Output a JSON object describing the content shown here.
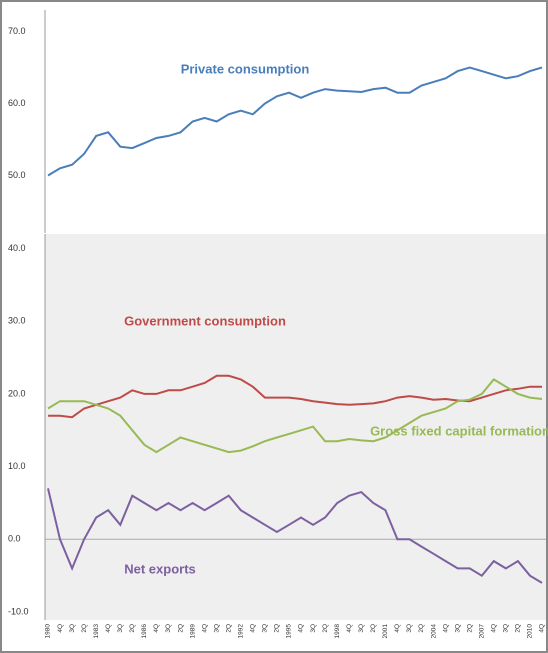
{
  "chart_data": [
    {
      "type": "line",
      "ylim": [
        42,
        73
      ],
      "yticks": [
        {
          "value": 50,
          "label": "50.0"
        },
        {
          "value": 60,
          "label": "60.0"
        },
        {
          "value": 70,
          "label": "70.0"
        }
      ],
      "series": [
        {
          "name": "Private consumption",
          "color": "#4a7ebb",
          "values": [
            50,
            51,
            51.5,
            53,
            55.5,
            56,
            54,
            53.8,
            54.5,
            55.2,
            55.5,
            56,
            57.5,
            58,
            57.5,
            58.5,
            59,
            58.5,
            60,
            61,
            61.5,
            60.8,
            61.5,
            62,
            61.8,
            61.7,
            61.6,
            62,
            62.2,
            61.5,
            61.5,
            62.5,
            63,
            63.5,
            64.5,
            65,
            64.5,
            64,
            63.5,
            63.8,
            64.5,
            65
          ]
        }
      ]
    },
    {
      "type": "line",
      "ylim": [
        -10,
        42
      ],
      "yticks": [
        {
          "value": -10,
          "label": "-10.0"
        },
        {
          "value": 0,
          "label": "0.0"
        },
        {
          "value": 10,
          "label": "10.0"
        },
        {
          "value": 20,
          "label": "20.0"
        },
        {
          "value": 30,
          "label": "30.0"
        },
        {
          "value": 40,
          "label": "40.0"
        }
      ],
      "categories": [
        "1980",
        "4Q",
        "3Q",
        "2Q",
        "1983",
        "4Q",
        "3Q",
        "2Q",
        "1986",
        "4Q",
        "3Q",
        "2Q",
        "1989",
        "4Q",
        "3Q",
        "2Q",
        "1992",
        "4Q",
        "3Q",
        "2Q",
        "1995",
        "4Q",
        "3Q",
        "2Q",
        "1998",
        "4Q",
        "3Q",
        "2Q",
        "2001",
        "4Q",
        "3Q",
        "2Q",
        "2004",
        "4Q",
        "3Q",
        "2Q",
        "2007",
        "4Q",
        "3Q",
        "2Q",
        "2010",
        "4Q"
      ],
      "series": [
        {
          "name": "Government consumption",
          "color": "#be4b48",
          "values": [
            17,
            17,
            16.8,
            18,
            18.5,
            19,
            19.5,
            20.5,
            20,
            20,
            20.5,
            20.5,
            21,
            21.5,
            22.5,
            22.5,
            22,
            21,
            19.5,
            19.5,
            19.5,
            19.3,
            19,
            18.8,
            18.6,
            18.5,
            18.6,
            18.7,
            19,
            19.5,
            19.7,
            19.5,
            19.2,
            19.3,
            19.1,
            19,
            19.5,
            20,
            20.5,
            20.7,
            21,
            21
          ]
        },
        {
          "name": "Gross fixed capital formation",
          "color": "#98b954",
          "values": [
            18,
            19,
            19,
            19,
            18.5,
            18,
            17,
            15,
            13,
            12,
            13,
            14,
            13.5,
            13,
            12.5,
            12,
            12.2,
            12.8,
            13.5,
            14,
            14.5,
            15,
            15.5,
            13.5,
            13.5,
            13.8,
            13.6,
            13.5,
            14,
            15,
            16,
            17,
            17.5,
            18,
            19,
            19.2,
            20,
            22,
            21,
            20,
            19.5,
            19.3
          ]
        },
        {
          "name": "Net exports",
          "color": "#7d60a0",
          "values": [
            7,
            0,
            -4,
            0,
            3,
            4,
            2,
            6,
            5,
            4,
            5,
            4,
            5,
            4,
            5,
            6,
            4,
            3,
            2,
            1,
            2,
            3,
            2,
            3,
            5,
            6,
            6.5,
            5,
            4,
            0,
            0,
            -1,
            -2,
            -3,
            -4,
            -4,
            -5,
            -3,
            -4,
            -3,
            -5,
            -6
          ]
        }
      ]
    }
  ]
}
